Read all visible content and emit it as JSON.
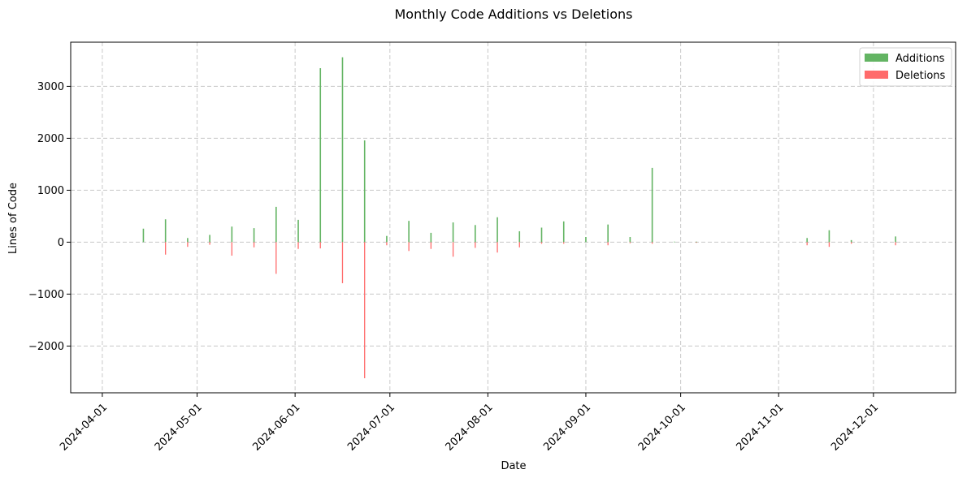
{
  "chart_data": {
    "type": "bar",
    "title": "Monthly Code Additions vs Deletions",
    "xlabel": "Date",
    "ylabel": "Lines of Code",
    "x_axis_type": "date",
    "xlim": [
      "2024-03-22",
      "2024-12-27"
    ],
    "ylim": [
      -2900,
      3850
    ],
    "x_ticks": [
      "2024-04-01",
      "2024-05-01",
      "2024-06-01",
      "2024-07-01",
      "2024-08-01",
      "2024-09-01",
      "2024-10-01",
      "2024-11-01",
      "2024-12-01"
    ],
    "y_ticks": [
      -2000,
      -1000,
      0,
      1000,
      2000,
      3000
    ],
    "y_tick_labels": [
      "−2000",
      "−1000",
      "0",
      "1000",
      "2000",
      "3000"
    ],
    "grid": true,
    "legend_position": "top-right",
    "x": [
      "2024-04-14",
      "2024-04-21",
      "2024-04-28",
      "2024-05-05",
      "2024-05-12",
      "2024-05-19",
      "2024-05-26",
      "2024-06-02",
      "2024-06-09",
      "2024-06-16",
      "2024-06-23",
      "2024-06-30",
      "2024-07-07",
      "2024-07-14",
      "2024-07-21",
      "2024-07-28",
      "2024-08-04",
      "2024-08-11",
      "2024-08-18",
      "2024-08-25",
      "2024-09-01",
      "2024-09-08",
      "2024-09-15",
      "2024-09-22",
      "2024-09-29",
      "2024-10-06",
      "2024-10-13",
      "2024-10-20",
      "2024-10-27",
      "2024-11-03",
      "2024-11-10",
      "2024-11-17",
      "2024-11-24",
      "2024-12-01",
      "2024-12-08"
    ],
    "series": [
      {
        "name": "Additions",
        "color": "#63b463",
        "values": [
          260,
          440,
          80,
          140,
          300,
          270,
          680,
          430,
          3350,
          3560,
          1960,
          120,
          410,
          180,
          380,
          330,
          480,
          210,
          280,
          400,
          100,
          340,
          100,
          1430,
          10,
          10,
          0,
          0,
          0,
          0,
          80,
          230,
          40,
          0,
          110
        ]
      },
      {
        "name": "Deletions",
        "color": "#ff6b6b",
        "values": [
          0,
          -240,
          -90,
          -50,
          -260,
          -100,
          -610,
          -130,
          -120,
          -790,
          -2620,
          -60,
          -170,
          -130,
          -280,
          -110,
          -200,
          -100,
          -30,
          -30,
          0,
          -60,
          -20,
          -30,
          0,
          -10,
          0,
          0,
          0,
          0,
          -60,
          -90,
          -30,
          0,
          -60
        ]
      }
    ]
  }
}
